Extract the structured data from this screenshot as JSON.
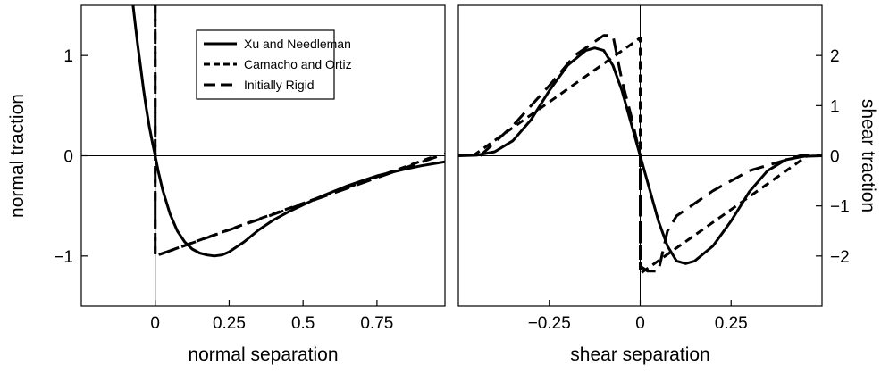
{
  "chart_data": [
    {
      "type": "line",
      "xlabel": "normal separation",
      "ylabel": "normal traction",
      "xlim": [
        -0.25,
        0.98
      ],
      "ylim": [
        -1.5,
        1.5
      ],
      "xticks": [
        {
          "value": 0,
          "label": "0"
        },
        {
          "value": 0.25,
          "label": "0.25"
        },
        {
          "value": 0.5,
          "label": "0.5"
        },
        {
          "value": 0.75,
          "label": "0.75"
        }
      ],
      "yticks": [
        {
          "value": -1,
          "label": "−1"
        },
        {
          "value": 0,
          "label": "0"
        },
        {
          "value": 1,
          "label": "1"
        }
      ],
      "ytick_side": "left",
      "ylabel_side": "left",
      "legend": {
        "placement": "top-center"
      },
      "series": [
        {
          "name": "Xu and Needleman",
          "dash": "solid",
          "points": [
            [
              -0.075,
              1.5
            ],
            [
              -0.06,
              1.12
            ],
            [
              -0.05,
              0.9
            ],
            [
              -0.04,
              0.67
            ],
            [
              -0.03,
              0.47
            ],
            [
              -0.02,
              0.29
            ],
            [
              -0.01,
              0.14
            ],
            [
              0,
              0
            ],
            [
              0.01,
              -0.15
            ],
            [
              0.025,
              -0.34
            ],
            [
              0.05,
              -0.58
            ],
            [
              0.075,
              -0.75
            ],
            [
              0.1,
              -0.86
            ],
            [
              0.125,
              -0.93
            ],
            [
              0.15,
              -0.97
            ],
            [
              0.175,
              -0.99
            ],
            [
              0.2,
              -1.0
            ],
            [
              0.225,
              -0.99
            ],
            [
              0.25,
              -0.96
            ],
            [
              0.3,
              -0.86
            ],
            [
              0.35,
              -0.74
            ],
            [
              0.4,
              -0.64
            ],
            [
              0.45,
              -0.56
            ],
            [
              0.5,
              -0.49
            ],
            [
              0.55,
              -0.42
            ],
            [
              0.6,
              -0.36
            ],
            [
              0.65,
              -0.3
            ],
            [
              0.7,
              -0.25
            ],
            [
              0.75,
              -0.2
            ],
            [
              0.8,
              -0.165
            ],
            [
              0.85,
              -0.13
            ],
            [
              0.9,
              -0.1
            ],
            [
              0.98,
              -0.06
            ]
          ]
        },
        {
          "name": "Camacho and Ortiz",
          "dash": "short",
          "points": [
            [
              0,
              1.5
            ],
            [
              0,
              -1
            ],
            [
              0.95,
              0
            ]
          ]
        },
        {
          "name": "Initially Rigid",
          "dash": "long",
          "points": [
            [
              0,
              1.5
            ],
            [
              0,
              -1
            ],
            [
              0.98,
              0.02
            ]
          ]
        }
      ]
    },
    {
      "type": "line",
      "xlabel": "shear separation",
      "ylabel": "shear traction",
      "xlim": [
        -0.5,
        0.5
      ],
      "ylim": [
        -3,
        3
      ],
      "xticks": [
        {
          "value": -0.25,
          "label": "−0.25"
        },
        {
          "value": 0,
          "label": "0"
        },
        {
          "value": 0.25,
          "label": "0.25"
        }
      ],
      "yticks": [
        {
          "value": -2,
          "label": "−2"
        },
        {
          "value": -1,
          "label": "−1"
        },
        {
          "value": 0,
          "label": "0"
        },
        {
          "value": 1,
          "label": "1"
        },
        {
          "value": 2,
          "label": "2"
        }
      ],
      "ytick_side": "right",
      "ylabel_side": "right",
      "series": [
        {
          "name": "Xu and Needleman",
          "dash": "solid",
          "points": [
            [
              -0.5,
              0
            ],
            [
              -0.45,
              0.01
            ],
            [
              -0.4,
              0.08
            ],
            [
              -0.35,
              0.3
            ],
            [
              -0.3,
              0.72
            ],
            [
              -0.25,
              1.3
            ],
            [
              -0.2,
              1.8
            ],
            [
              -0.15,
              2.1
            ],
            [
              -0.125,
              2.15
            ],
            [
              -0.1,
              2.1
            ],
            [
              -0.075,
              1.8
            ],
            [
              -0.05,
              1.3
            ],
            [
              -0.025,
              0.65
            ],
            [
              0,
              0
            ],
            [
              0.025,
              -0.65
            ],
            [
              0.05,
              -1.3
            ],
            [
              0.075,
              -1.8
            ],
            [
              0.1,
              -2.1
            ],
            [
              0.125,
              -2.15
            ],
            [
              0.15,
              -2.1
            ],
            [
              0.2,
              -1.8
            ],
            [
              0.25,
              -1.3
            ],
            [
              0.3,
              -0.72
            ],
            [
              0.35,
              -0.3
            ],
            [
              0.4,
              -0.08
            ],
            [
              0.45,
              -0.01
            ],
            [
              0.5,
              0
            ]
          ]
        },
        {
          "name": "Camacho and Ortiz",
          "dash": "short",
          "points": [
            [
              -0.46,
              0
            ],
            [
              0,
              2.35
            ],
            [
              0,
              -2.35
            ],
            [
              0.46,
              0
            ]
          ]
        },
        {
          "name": "Initially Rigid",
          "dash": "long",
          "points": [
            [
              -0.44,
              0
            ],
            [
              -0.35,
              0.6
            ],
            [
              -0.25,
              1.4
            ],
            [
              -0.18,
              2.0
            ],
            [
              -0.1,
              2.4
            ],
            [
              -0.075,
              2.4
            ],
            [
              -0.05,
              1.5
            ],
            [
              -0.025,
              0.8
            ],
            [
              0,
              0
            ],
            [
              0,
              -2.2
            ],
            [
              0.02,
              -2.3
            ],
            [
              0.05,
              -2.3
            ],
            [
              0.075,
              -1.5
            ],
            [
              0.1,
              -1.2
            ],
            [
              0.2,
              -0.7
            ],
            [
              0.3,
              -0.3
            ],
            [
              0.44,
              0
            ],
            [
              0.5,
              0
            ]
          ]
        }
      ]
    }
  ]
}
